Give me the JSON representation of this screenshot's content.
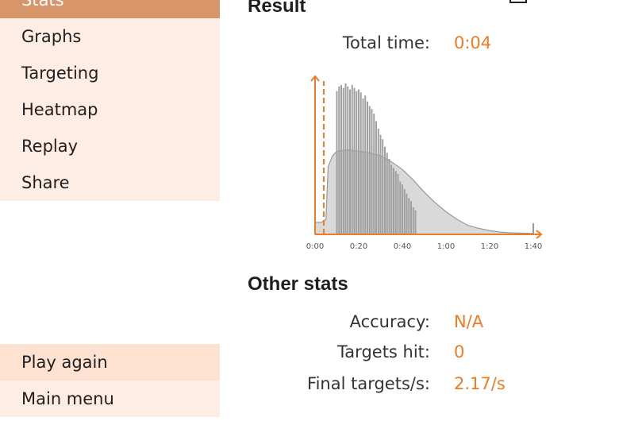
{
  "menu": {
    "top_items": [
      {
        "label": "Stats"
      },
      {
        "label": "Graphs"
      },
      {
        "label": "Targeting"
      },
      {
        "label": "Heatmap"
      },
      {
        "label": "Replay"
      },
      {
        "label": "Share"
      }
    ],
    "bottom_items": [
      {
        "label": "Play again"
      },
      {
        "label": "Main menu"
      }
    ]
  },
  "result": {
    "heading": "Result",
    "total_time_label": "Total time:",
    "total_time_value": "0:04"
  },
  "other_stats": {
    "heading": "Other stats",
    "accuracy_label": "Accuracy:",
    "accuracy_value": "N/A",
    "targets_hit_label": "Targets hit:",
    "targets_hit_value": "0",
    "final_rate_label": "Final targets/s:",
    "final_rate_value": "2.17/s"
  },
  "colors": {
    "accent": "#f07b22",
    "menu_bg": "#feede4",
    "menu_active": "#d9956a",
    "histogram_fill": "#d9d9d9",
    "histogram_line": "#999999"
  },
  "chart_data": {
    "type": "area",
    "x_tick_labels": [
      "0:00",
      "0:20",
      "0:40",
      "1:00",
      "1:20",
      "1:40"
    ],
    "x_range_seconds": [
      0,
      100
    ],
    "player_time_seconds": 4,
    "distribution_x": [
      0,
      3,
      5,
      6,
      8,
      10,
      15,
      20,
      25,
      30,
      35,
      40,
      45,
      50,
      55,
      60,
      65,
      70,
      75,
      80,
      85,
      90,
      95,
      100
    ],
    "distribution_y": [
      0.08,
      0.08,
      0.1,
      0.45,
      0.52,
      0.55,
      0.56,
      0.55,
      0.54,
      0.52,
      0.48,
      0.43,
      0.36,
      0.28,
      0.21,
      0.15,
      0.1,
      0.06,
      0.04,
      0.025,
      0.015,
      0.01,
      0.008,
      0.006
    ],
    "spikes_x": [
      10,
      11,
      12,
      13,
      14,
      15,
      16,
      17,
      18,
      19,
      20,
      21,
      22,
      23,
      24,
      25,
      26,
      27,
      28,
      29,
      30,
      31,
      32,
      33,
      34,
      35,
      36,
      37,
      38,
      39,
      40,
      41,
      42,
      43,
      44,
      45,
      46
    ],
    "spikes_y": [
      0.95,
      0.98,
      0.99,
      0.97,
      1.0,
      0.98,
      0.96,
      0.99,
      0.97,
      0.95,
      0.96,
      0.94,
      0.9,
      0.92,
      0.88,
      0.85,
      0.83,
      0.8,
      0.75,
      0.7,
      0.66,
      0.63,
      0.58,
      0.54,
      0.5,
      0.46,
      0.44,
      0.42,
      0.4,
      0.35,
      0.33,
      0.3,
      0.27,
      0.24,
      0.22,
      0.18,
      0.16
    ]
  }
}
